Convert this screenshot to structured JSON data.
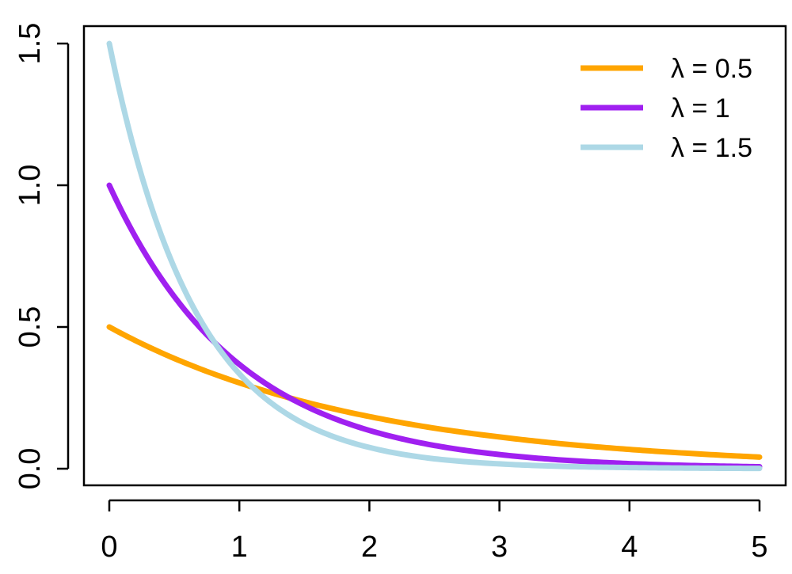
{
  "chart_data": {
    "type": "line",
    "title": "",
    "xlabel": "",
    "ylabel": "",
    "xlim": [
      0,
      5
    ],
    "ylim": [
      0,
      1.5
    ],
    "x_ticks": [
      "0",
      "1",
      "2",
      "3",
      "4",
      "5"
    ],
    "y_ticks": [
      "0.0",
      "0.5",
      "1.0",
      "1.5"
    ],
    "grid": false,
    "legend_position": "top-right",
    "series": [
      {
        "name": "λ = 0.5",
        "color": "#FFA500",
        "x": [
          0,
          0.5,
          1,
          1.5,
          2,
          2.5,
          3,
          3.5,
          4,
          4.5,
          5
        ],
        "y": [
          0.5,
          0.389,
          0.303,
          0.236,
          0.184,
          0.143,
          0.112,
          0.087,
          0.068,
          0.053,
          0.041
        ]
      },
      {
        "name": "λ = 1",
        "color": "#A020F0",
        "x": [
          0,
          0.5,
          1,
          1.5,
          2,
          2.5,
          3,
          3.5,
          4,
          4.5,
          5
        ],
        "y": [
          1.0,
          0.607,
          0.368,
          0.223,
          0.135,
          0.082,
          0.05,
          0.03,
          0.018,
          0.011,
          0.007
        ]
      },
      {
        "name": "λ = 1.5",
        "color": "#ADD8E6",
        "x": [
          0,
          0.5,
          1,
          1.5,
          2,
          2.5,
          3,
          3.5,
          4,
          4.5,
          5
        ],
        "y": [
          1.5,
          0.709,
          0.335,
          0.158,
          0.075,
          0.035,
          0.017,
          0.008,
          0.004,
          0.002,
          0.001
        ]
      }
    ]
  }
}
